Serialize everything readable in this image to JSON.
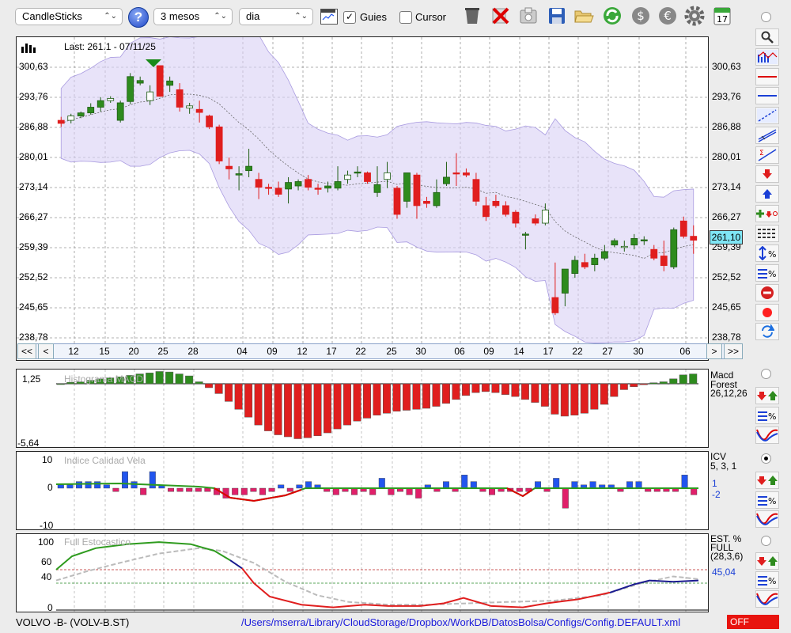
{
  "toolbar": {
    "chart_type": "CandleSticks",
    "help_label": "?",
    "period": "3 mesos",
    "interval": "dia",
    "guies_label": "Guies",
    "guies_checked": true,
    "cursor_label": "Cursor",
    "cursor_checked": false,
    "calendar_day": "17",
    "icons": [
      "bank-icon",
      "delete-icon",
      "save-as-icon",
      "save-icon",
      "open-folder-icon",
      "refresh-icon",
      "dollar-icon",
      "euro-icon",
      "settings-icon",
      "calendar-icon"
    ]
  },
  "main_chart": {
    "last_label": "Last: 261.1 - 07/11/25",
    "y_ticks": [
      "300,63",
      "293,76",
      "286,88",
      "280,01",
      "273,14",
      "266,27",
      "259,39",
      "252,52",
      "245,65",
      "238,78"
    ],
    "current_price": "261,10",
    "x_ticks": [
      "12",
      "15",
      "20",
      "25",
      "28",
      "04",
      "09",
      "12",
      "17",
      "22",
      "25",
      "30",
      "06",
      "09",
      "14",
      "17",
      "22",
      "27",
      "30",
      "06"
    ],
    "nav": {
      "first": "<<",
      "prev": "<",
      "next": ">",
      "last": ">>"
    }
  },
  "macd_panel": {
    "title": "Histograma MACD",
    "y_top": "1,25",
    "y_bottom": "-5,64",
    "label1": "Macd",
    "label2": "Forest",
    "params": "26,12,26"
  },
  "icv_panel": {
    "title": "Indice Calidad Vela",
    "y_top": "10",
    "y_mid": "0",
    "y_bottom": "-10",
    "label": "ICV",
    "params": "5, 3, 1",
    "value1": "1",
    "value2": "-2"
  },
  "stoch_panel": {
    "title": "Full Estocastico",
    "y_ticks": [
      "100",
      "60",
      "40",
      "0"
    ],
    "label1": "EST. %",
    "label2": "FULL",
    "params": "(28,3,6)",
    "value": "45,04"
  },
  "status": {
    "ticker": "VOLVO -B- (VOLV-B.ST)",
    "path": "/Users/mserra/Library/CloudStorage/Dropbox/WorkDB/DatosBolsa/Configs/Config.DEFAULT.xml",
    "off_label": "OFF"
  },
  "right_toolbar": [
    "zoom-icon",
    "chart-type-icon",
    "horizontal-line-red-icon",
    "horizontal-line-blue-icon",
    "trendline-icon",
    "channel-icon",
    "fibonacci-icon",
    "arrow-down-icon",
    "arrow-up-icon",
    "buy-sell-icon",
    "grid-lines-icon",
    "scale-percent-icon",
    "percent-icon",
    "no-entry-icon",
    "record-icon",
    "sync-icon"
  ],
  "colors": {
    "bull": "#2e8b1e",
    "bear": "#e01e1e",
    "band": "#d8d0f5",
    "blue": "#2255ee",
    "pink": "#e0206a",
    "accent": "#1a4fd6"
  },
  "chart_data": {
    "type": "candlestick",
    "candles": [
      [
        288.5,
        289.3,
        287.0,
        287.8
      ],
      [
        288.5,
        290.0,
        287.8,
        289.5
      ],
      [
        289.5,
        290.5,
        289.0,
        290.2
      ],
      [
        290.2,
        292.4,
        289.8,
        291.5
      ],
      [
        291.5,
        293.8,
        290.5,
        293.0
      ],
      [
        293.0,
        294.0,
        292.5,
        293.5
      ],
      [
        288.5,
        293.0,
        288.0,
        292.5
      ],
      [
        292.8,
        299.3,
        292.2,
        298.5
      ],
      [
        297.0,
        298.5,
        296.5,
        297.6
      ],
      [
        293.0,
        296.5,
        292.0,
        295.0
      ],
      [
        301.0,
        301.0,
        294.0,
        294.0
      ],
      [
        296.5,
        298.5,
        295.0,
        297.5
      ],
      [
        295.5,
        297.0,
        290.5,
        291.5
      ],
      [
        291.3,
        292.5,
        290.0,
        291.8
      ],
      [
        291.0,
        293.0,
        288.0,
        290.3
      ],
      [
        289.5,
        289.8,
        286.5,
        287.0
      ],
      [
        287.0,
        287.5,
        278.5,
        279.2
      ],
      [
        278.0,
        280.0,
        275.0,
        277.4
      ],
      [
        276.0,
        278.0,
        272.5,
        276.3
      ],
      [
        277.0,
        282.0,
        275.5,
        278.0
      ],
      [
        275.0,
        276.5,
        270.5,
        273.2
      ],
      [
        273.2,
        274.0,
        271.5,
        273.0
      ],
      [
        273.0,
        274.5,
        271.0,
        271.6
      ],
      [
        272.8,
        275.5,
        269.5,
        274.3
      ],
      [
        273.5,
        275.0,
        272.5,
        274.5
      ],
      [
        275.0,
        276.0,
        272.5,
        273.2
      ],
      [
        273.0,
        274.0,
        271.5,
        272.8
      ],
      [
        273.0,
        274.5,
        272.0,
        273.5
      ],
      [
        273.0,
        278.0,
        272.5,
        274.5
      ],
      [
        275.0,
        277.0,
        274.0,
        276.0
      ],
      [
        276.5,
        278.0,
        275.5,
        276.7
      ],
      [
        276.5,
        276.8,
        274.0,
        274.5
      ],
      [
        272.0,
        278.0,
        271.0,
        273.8
      ],
      [
        275.0,
        279.0,
        273.0,
        276.5
      ],
      [
        273.0,
        273.5,
        266.0,
        267.0
      ],
      [
        270.0,
        276.0,
        268.5,
        276.5
      ],
      [
        276.0,
        276.5,
        266.0,
        269.0
      ],
      [
        270.0,
        271.0,
        268.5,
        269.5
      ],
      [
        269.0,
        275.0,
        268.5,
        272.0
      ],
      [
        274.0,
        279.0,
        273.5,
        275.5
      ],
      [
        276.5,
        281.0,
        273.5,
        276.3
      ],
      [
        276.5,
        277.5,
        275.5,
        276.0
      ],
      [
        275.0,
        276.5,
        269.0,
        270.0
      ],
      [
        269.0,
        271.0,
        265.5,
        266.5
      ],
      [
        270.0,
        271.5,
        268.5,
        269.0
      ],
      [
        269.0,
        270.0,
        266.5,
        267.0
      ],
      [
        267.5,
        268.0,
        264.0,
        265.0
      ],
      [
        262.5,
        263.0,
        259.0,
        262.5
      ],
      [
        266.0,
        267.0,
        264.5,
        265.0
      ],
      [
        265.0,
        269.5,
        264.5,
        268.0
      ],
      [
        248.0,
        256.0,
        244.0,
        244.5
      ],
      [
        249.0,
        254.0,
        246.0,
        254.5
      ],
      [
        253.5,
        257.5,
        252.5,
        256.5
      ],
      [
        256.0,
        258.0,
        254.5,
        255.0
      ],
      [
        255.5,
        258.0,
        254.0,
        257.0
      ],
      [
        257.0,
        260.0,
        256.5,
        258.5
      ],
      [
        260.0,
        261.5,
        259.5,
        261.0
      ],
      [
        259.5,
        261.0,
        258.5,
        259.7
      ],
      [
        260.0,
        262.5,
        259.0,
        261.5
      ],
      [
        261.0,
        262.0,
        260.0,
        261.2
      ],
      [
        259.0,
        260.0,
        256.5,
        257.0
      ],
      [
        257.5,
        261.0,
        254.0,
        255.3
      ],
      [
        255.0,
        264.0,
        254.5,
        263.5
      ],
      [
        265.5,
        266.5,
        261.5,
        262.0
      ],
      [
        262.0,
        264.5,
        258.0,
        261.1
      ]
    ],
    "macd_histogram": [
      0.0,
      0.15,
      0.2,
      0.35,
      0.5,
      0.6,
      0.7,
      0.85,
      1.0,
      1.1,
      1.25,
      1.2,
      1.0,
      0.8,
      0.2,
      -0.4,
      -1.0,
      -1.8,
      -2.6,
      -3.4,
      -4.2,
      -4.8,
      -5.2,
      -5.4,
      -5.6,
      -5.5,
      -5.3,
      -5.0,
      -4.6,
      -4.2,
      -3.8,
      -3.5,
      -3.2,
      -3.0,
      -2.8,
      -2.7,
      -2.6,
      -2.5,
      -2.3,
      -2.0,
      -1.6,
      -1.2,
      -0.9,
      -0.8,
      -0.9,
      -1.1,
      -1.3,
      -1.6,
      -1.9,
      -2.3,
      -3.1,
      -3.3,
      -3.2,
      -3.0,
      -2.6,
      -2.1,
      -1.3,
      -0.6,
      -0.3,
      -0.1,
      0.1,
      0.2,
      0.5,
      0.9,
      1.0
    ],
    "icv_bars": [
      1,
      1,
      2,
      2,
      2,
      1,
      -1,
      5,
      2,
      -2,
      5,
      1,
      -1,
      -1,
      -1,
      -1,
      -1,
      -2,
      -3,
      -2,
      -2,
      -1,
      -2,
      -1,
      1,
      -1,
      1,
      2,
      1,
      -1,
      -2,
      -1,
      -2,
      -1,
      -2,
      3,
      -2,
      -1,
      -2,
      -3,
      1,
      -1,
      2,
      -1,
      4,
      2,
      -1,
      -2,
      -1,
      -1,
      -1,
      -1,
      2,
      -1,
      3,
      -6,
      2,
      1,
      2,
      1,
      1,
      -1,
      2,
      2,
      -1,
      -1,
      -1,
      -1,
      4,
      -2
    ]
  }
}
